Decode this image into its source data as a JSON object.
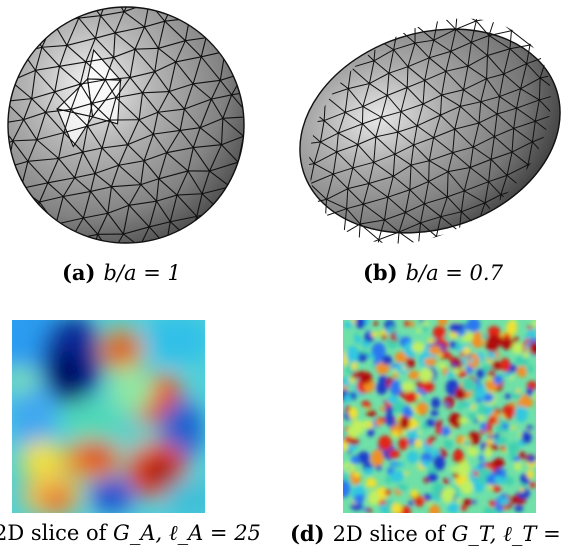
{
  "figure": {
    "panels": [
      {
        "id": "a",
        "tag": "(a)",
        "math": "b/a = 1"
      },
      {
        "id": "b",
        "tag": "(b)",
        "math": "b/a = 0.7"
      },
      {
        "id": "c",
        "tag": "",
        "text": "2D slice of ",
        "math": "G_A, ℓ_A = 25"
      },
      {
        "id": "d",
        "tag": "(d)",
        "text": "2D slice of ",
        "math": "G_T, ℓ_T ="
      }
    ]
  }
}
